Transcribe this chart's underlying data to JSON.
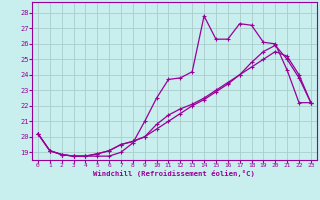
{
  "xlabel": "Windchill (Refroidissement éolien,°C)",
  "xlim": [
    -0.5,
    23.5
  ],
  "ylim": [
    18.5,
    28.7
  ],
  "xticks": [
    0,
    1,
    2,
    3,
    4,
    5,
    6,
    7,
    8,
    9,
    10,
    11,
    12,
    13,
    14,
    15,
    16,
    17,
    18,
    19,
    20,
    21,
    22,
    23
  ],
  "yticks": [
    19,
    20,
    21,
    22,
    23,
    24,
    25,
    26,
    27,
    28
  ],
  "bg_color": "#c8eeee",
  "line_color": "#990099",
  "grid_color": "#aacccc",
  "line1_x": [
    0,
    1,
    2,
    3,
    4,
    5,
    6,
    7,
    8,
    9,
    10,
    11,
    12,
    13,
    14,
    15,
    16,
    17,
    18,
    19,
    20,
    21,
    22,
    23
  ],
  "line1_y": [
    20.2,
    19.1,
    18.85,
    18.75,
    18.75,
    18.75,
    18.75,
    19.0,
    19.6,
    21.0,
    22.5,
    23.7,
    23.8,
    24.2,
    27.8,
    26.3,
    26.3,
    27.3,
    27.2,
    26.1,
    26.0,
    24.3,
    22.2,
    22.2
  ],
  "line2_x": [
    0,
    1,
    2,
    3,
    4,
    5,
    6,
    7,
    8,
    9,
    10,
    11,
    12,
    13,
    14,
    15,
    16,
    17,
    18,
    19,
    20,
    21,
    22,
    23
  ],
  "line2_y": [
    20.2,
    19.1,
    18.85,
    18.75,
    18.75,
    18.9,
    19.1,
    19.5,
    19.7,
    20.0,
    20.8,
    21.4,
    21.8,
    22.1,
    22.5,
    23.0,
    23.5,
    24.0,
    24.5,
    25.0,
    25.5,
    25.2,
    24.0,
    22.2
  ],
  "line3_x": [
    0,
    1,
    2,
    3,
    4,
    5,
    6,
    7,
    8,
    9,
    10,
    11,
    12,
    13,
    14,
    15,
    16,
    17,
    18,
    19,
    20,
    21,
    22,
    23
  ],
  "line3_y": [
    20.2,
    19.1,
    18.85,
    18.75,
    18.75,
    18.9,
    19.1,
    19.5,
    19.7,
    20.0,
    20.5,
    21.0,
    21.5,
    22.0,
    22.4,
    22.9,
    23.4,
    24.0,
    24.8,
    25.5,
    25.9,
    25.0,
    23.8,
    22.2
  ]
}
